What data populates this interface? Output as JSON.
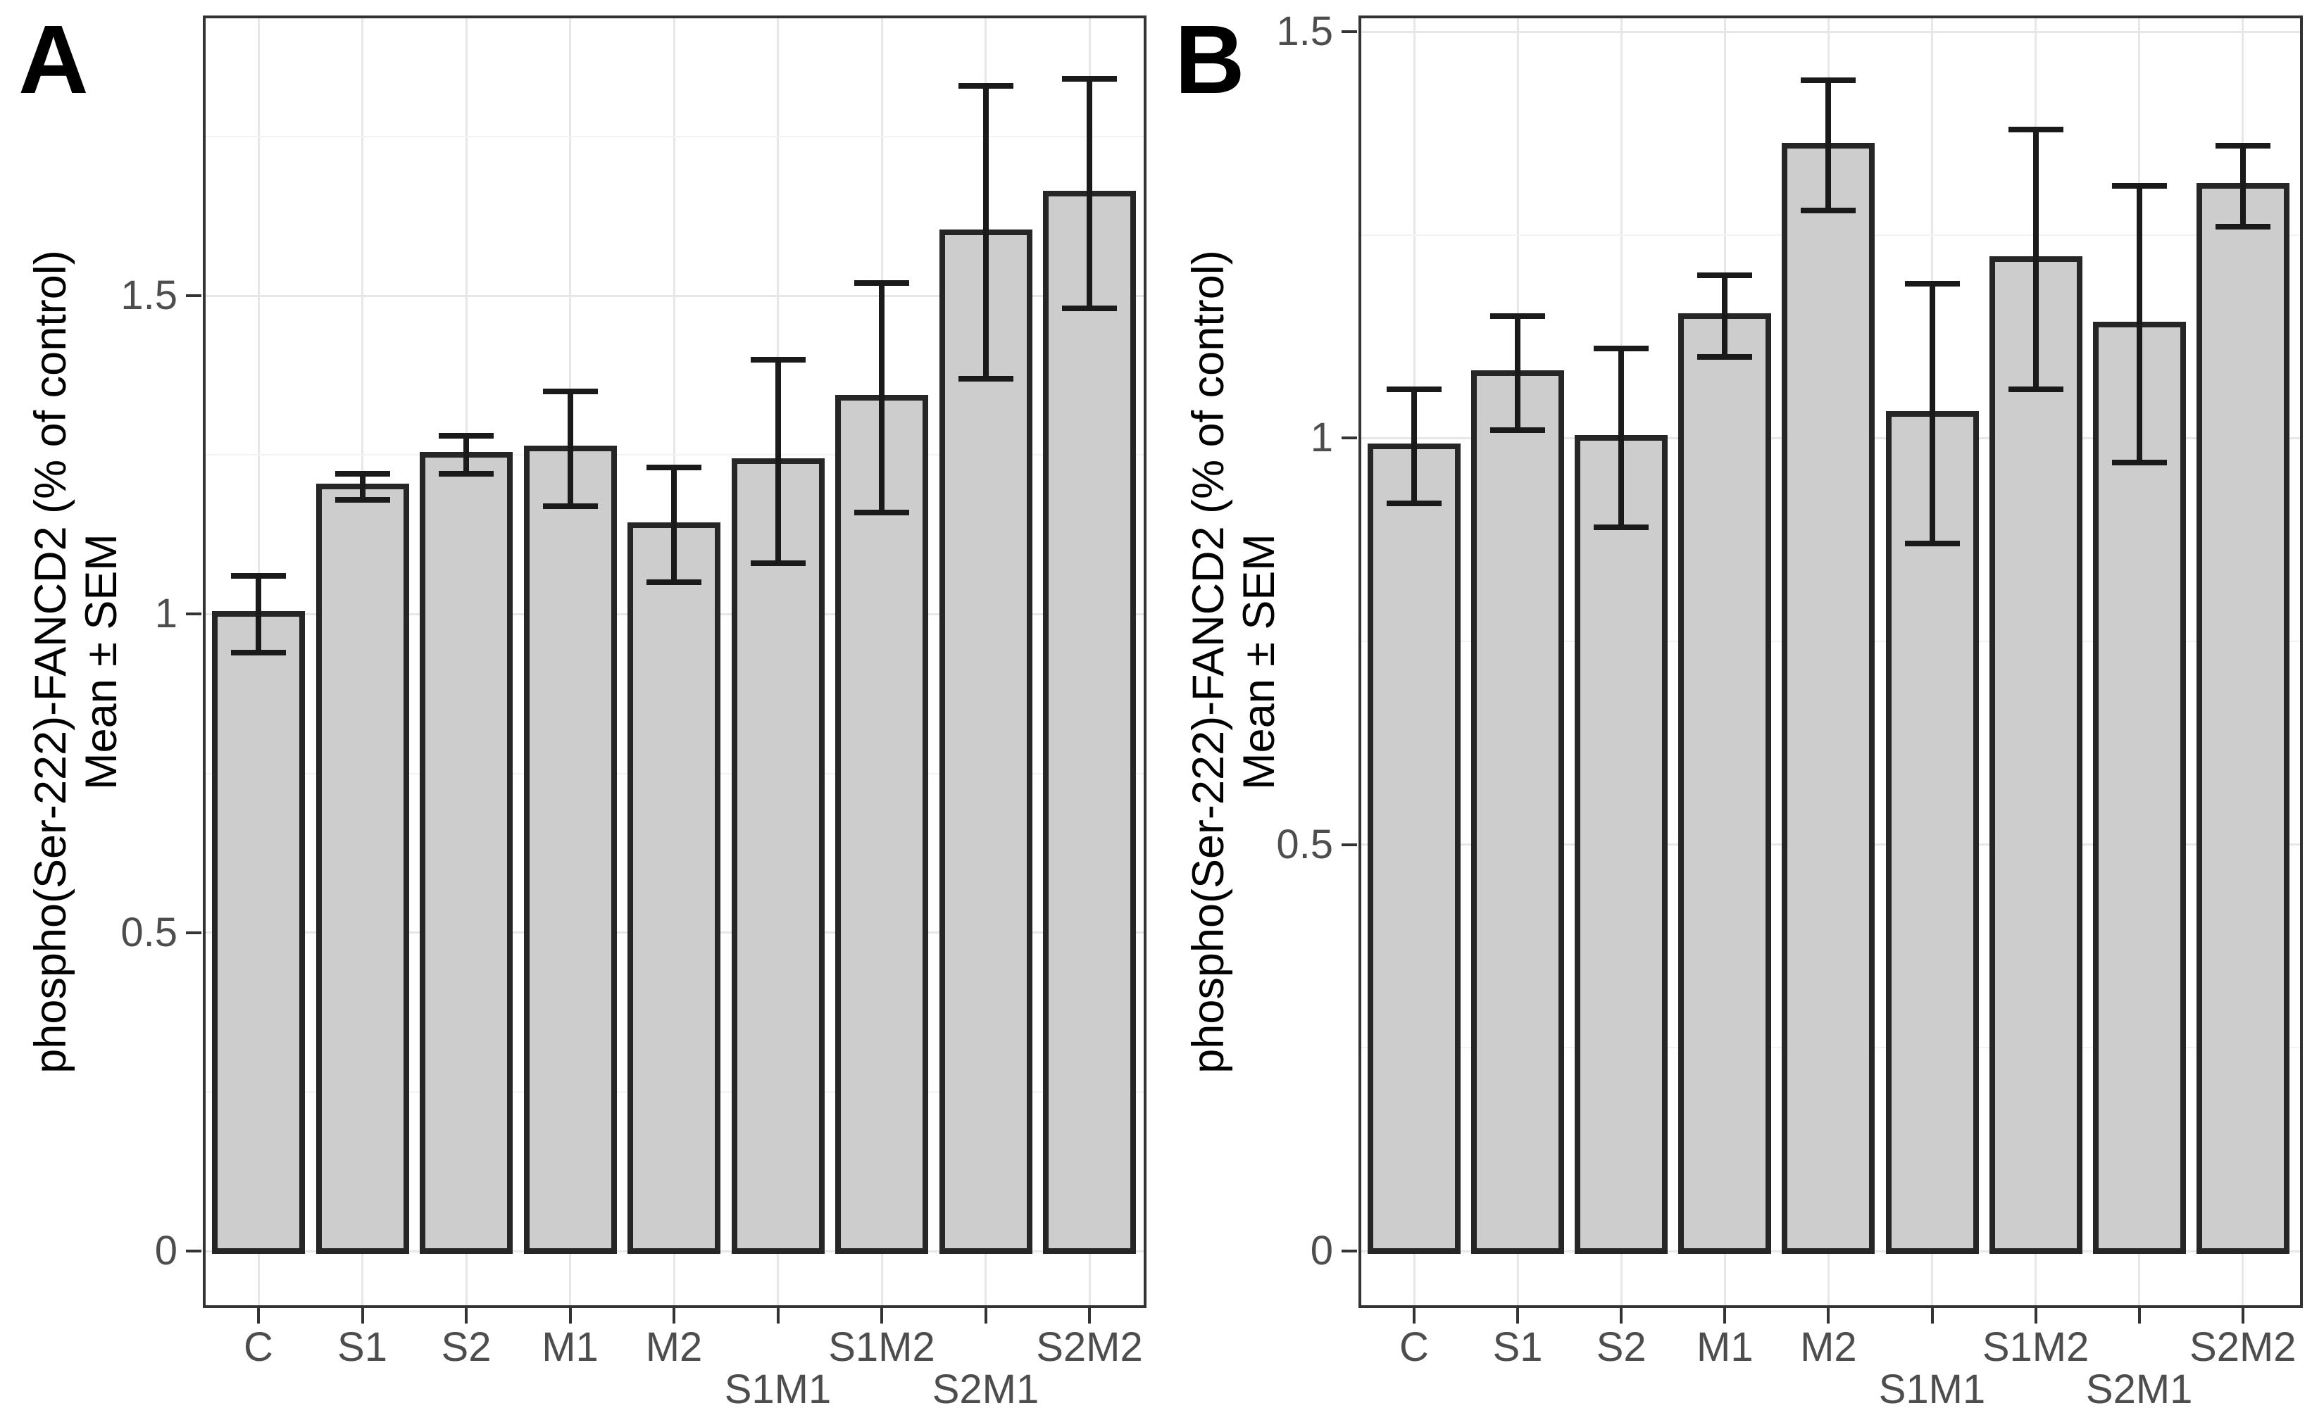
{
  "figure_kind": "two-panel scientific bar chart with SEM error bars (ggplot style)",
  "chart_data": [
    {
      "type": "bar",
      "panel_label": "A",
      "title": "",
      "xlabel": "",
      "ylabel_line1": "phospho(Ser-222)-FANCD2 (% of control)",
      "ylabel_line2": "Mean ± SEM",
      "categories": [
        "C",
        "S1",
        "S2",
        "M1",
        "M2",
        "S1M1",
        "S1M2",
        "S2M1",
        "S2M2"
      ],
      "values": [
        1.0,
        1.2,
        1.25,
        1.26,
        1.14,
        1.24,
        1.34,
        1.6,
        1.66
      ],
      "sem": [
        0.06,
        0.02,
        0.03,
        0.09,
        0.09,
        0.16,
        0.18,
        0.23,
        0.18
      ],
      "error_bars": "mean ± SEM, symmetric, capped",
      "ylim": [
        0,
        1.94
      ],
      "yticks": [
        0,
        0.5,
        1,
        1.5
      ],
      "ytick_labels": [
        "0",
        "0.5",
        "1",
        "1.5"
      ],
      "minor_gridlines": [
        0.25,
        0.75,
        1.25,
        1.75
      ],
      "x_label_rows": [
        1,
        1,
        1,
        1,
        1,
        2,
        1,
        2,
        1
      ],
      "grid": "horizontal major+minor, vertical major at each category",
      "legend": "none"
    },
    {
      "type": "bar",
      "panel_label": "B",
      "title": "",
      "xlabel": "",
      "ylabel_line1": "phospho(Ser-222)-FANCD2 (% of control)",
      "ylabel_line2": "Mean ± SEM",
      "categories": [
        "C",
        "S1",
        "S2",
        "M1",
        "M2",
        "S1M1",
        "S1M2",
        "S2M1",
        "S2M2"
      ],
      "values": [
        0.99,
        1.08,
        1.0,
        1.15,
        1.36,
        1.03,
        1.22,
        1.14,
        1.31
      ],
      "sem": [
        0.07,
        0.07,
        0.11,
        0.05,
        0.08,
        0.16,
        0.16,
        0.17,
        0.05
      ],
      "error_bars": "mean ± SEM, symmetric, capped",
      "ylim": [
        0,
        1.52
      ],
      "yticks": [
        0,
        0.5,
        1,
        1.5
      ],
      "ytick_labels": [
        "0",
        "0.5",
        "1",
        "1.5"
      ],
      "minor_gridlines": [
        0.25,
        0.75,
        1.25
      ],
      "x_label_rows": [
        1,
        1,
        1,
        1,
        1,
        2,
        1,
        2,
        1
      ],
      "grid": "horizontal major+minor, vertical major at each category",
      "legend": "none"
    }
  ],
  "style": {
    "colors": {
      "background": "#ffffff",
      "bar_fill": "#cdcdcd",
      "bar_border": "#262626",
      "error_bar": "#1a1a1a",
      "panel_border": "#333333",
      "grid_major": "#e7e7e7",
      "grid_minor": "#f3f3f3",
      "tick_mark": "#333333",
      "tick_label": "#4d4d4d",
      "axis_title": "#000000",
      "panel_letter": "#000000"
    }
  }
}
